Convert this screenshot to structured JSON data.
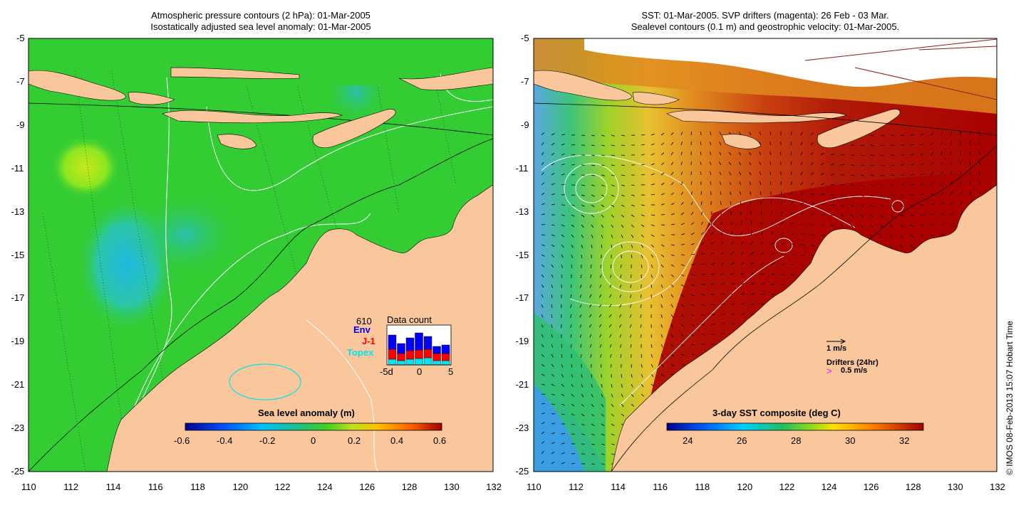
{
  "left_panel": {
    "title_line1": "Atmospheric pressure contours (2 hPa): 01-Mar-2005",
    "title_line2": "Isostatically adjusted sea level anomaly: 01-Mar-2005",
    "colorbar_label": "Sea level anomaly (m)",
    "colorbar_ticks": [
      "-0.6",
      "-0.4",
      "-0.2",
      "0",
      "0.2",
      "0.4",
      "0.6"
    ],
    "inset": {
      "title": "Data count",
      "count": "610",
      "sat1": "Env",
      "sat2": "J-1",
      "sat3": "Topex",
      "xticks": [
        "-5d",
        "0",
        "5"
      ],
      "colors": {
        "env": "#0000ff",
        "j1": "#ff0000",
        "topex": "#00e5ee"
      }
    }
  },
  "right_panel": {
    "title_line1": "SST: 01-Mar-2005. SVP drifters (magenta): 26 Feb - 03 Mar.",
    "title_line2": "Sealevel contours (0.1 m) and geostrophic velocity: 01-Mar-2005.",
    "colorbar_label": "3-day SST composite (deg C)",
    "colorbar_ticks": [
      "24",
      "26",
      "28",
      "30",
      "32"
    ],
    "velocity_scale": "1 m/s",
    "drifters_label": "Drifters (24hr)",
    "drifters_scale": "0.5 m/s",
    "drifter_marker": ">",
    "drifter_color": "#ff00ff"
  },
  "y_ticks": [
    "-5",
    "-7",
    "-9",
    "-11",
    "-13",
    "-15",
    "-17",
    "-19",
    "-21",
    "-23",
    "-25"
  ],
  "x_ticks": [
    "110",
    "112",
    "114",
    "116",
    "118",
    "120",
    "122",
    "124",
    "126",
    "128",
    "130",
    "132"
  ],
  "footer": "© IMOS 08-Feb-2013 15:07 Hobart Time",
  "colors": {
    "land": "#f9c79b",
    "sea_green": "#33cc33",
    "sst_hot": "#a80000"
  }
}
